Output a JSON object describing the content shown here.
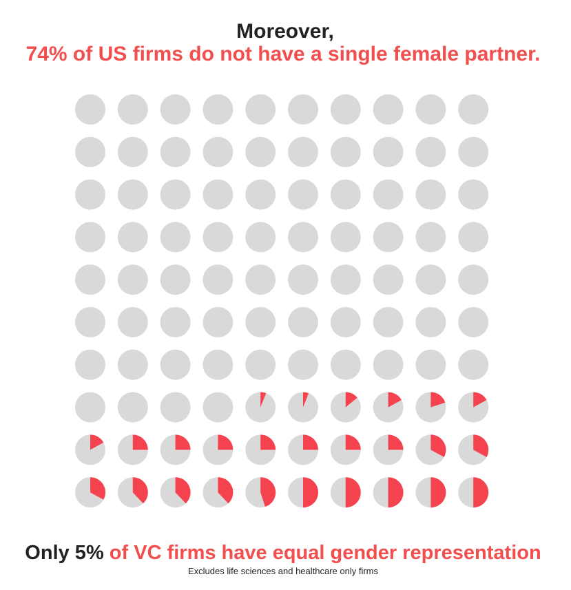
{
  "header": {
    "line1": "Moreover,",
    "line2": "74% of US firms do not have a single female partner."
  },
  "chart_data": {
    "type": "waffle-pie",
    "columns": 10,
    "values": [
      0,
      0,
      0,
      0,
      0,
      0,
      0,
      0,
      0,
      0,
      0,
      0,
      0,
      0,
      0,
      0,
      0,
      0,
      0,
      0,
      0,
      0,
      0,
      0,
      0,
      0,
      0,
      0,
      0,
      0,
      0,
      0,
      0,
      0,
      0,
      0,
      0,
      0,
      0,
      0,
      0,
      0,
      0,
      0,
      0,
      0,
      0,
      0,
      0,
      0,
      0,
      0,
      0,
      0,
      0,
      0,
      0,
      0,
      0,
      0,
      0,
      0,
      0,
      0,
      0,
      0,
      0,
      0,
      0,
      0,
      0,
      0,
      0,
      0,
      6,
      6,
      14,
      17,
      20,
      17,
      17,
      25,
      25,
      25,
      25,
      25,
      25,
      25,
      33,
      33,
      33,
      38,
      38,
      38,
      45,
      50,
      50,
      50,
      50,
      50
    ],
    "color": "#f5424f",
    "background_color": "#d9d9d9"
  },
  "footer": {
    "highlight": "Only 5%",
    "text": "of VC firms have equal gender representation",
    "note": "Excludes life sciences and healthcare only firms"
  }
}
